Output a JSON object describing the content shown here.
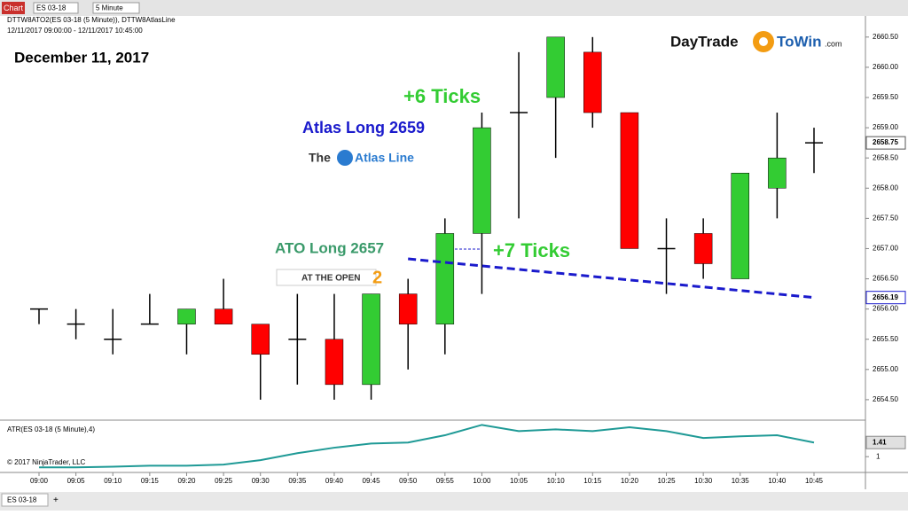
{
  "window": {
    "title": "Chart",
    "instrument": "ES 03-18",
    "interval": "5 Minute",
    "tab": "ES 03-18",
    "add_tab": "+"
  },
  "logo": {
    "part1": "DayTrade",
    "part2": "ToWin",
    "part3": ".com"
  },
  "chart_data": [
    {
      "type": "candlestick",
      "header": "DTTW8ATO2(ES 03-18 (5 Minute)), DTTW8AtlasLine",
      "range": "12/11/2017 09:00:00 - 12/11/2017 10:45:00",
      "title": "December 11, 2017",
      "x": [
        "09:00",
        "09:05",
        "09:10",
        "09:15",
        "09:20",
        "09:25",
        "09:30",
        "09:35",
        "09:40",
        "09:45",
        "09:50",
        "09:55",
        "10:00",
        "10:05",
        "10:10",
        "10:15",
        "10:20",
        "10:25",
        "10:30",
        "10:35",
        "10:40",
        "10:45"
      ],
      "series": [
        {
          "up_color": "#33cc33",
          "down_color": "#ff0000",
          "open": [
            2656.0,
            2655.75,
            2655.5,
            2655.75,
            2655.75,
            2656.0,
            2655.75,
            2655.5,
            2655.5,
            2654.75,
            2656.25,
            2655.75,
            2657.25,
            2659.25,
            2659.5,
            2660.25,
            2659.25,
            2657.0,
            2657.25,
            2656.5,
            2658.0,
            2658.75
          ],
          "high": [
            2656.0,
            2656.0,
            2656.0,
            2656.25,
            2656.0,
            2656.5,
            2655.75,
            2656.25,
            2656.25,
            2656.25,
            2656.5,
            2657.5,
            2659.25,
            2660.25,
            2660.5,
            2660.5,
            2659.25,
            2657.5,
            2657.5,
            2658.25,
            2659.25,
            2659.0
          ],
          "low": [
            2655.75,
            2655.5,
            2655.25,
            2655.75,
            2655.25,
            2655.75,
            2654.5,
            2654.75,
            2654.5,
            2654.5,
            2655.0,
            2655.25,
            2656.25,
            2657.5,
            2658.5,
            2659.0,
            2657.0,
            2656.25,
            2656.5,
            2656.5,
            2657.5,
            2658.25
          ],
          "close": [
            2656.0,
            2655.75,
            2655.5,
            2655.75,
            2656.0,
            2655.75,
            2655.25,
            2655.5,
            2654.75,
            2656.25,
            2655.75,
            2657.25,
            2659.0,
            2659.25,
            2660.5,
            2659.25,
            2657.0,
            2657.0,
            2656.75,
            2658.25,
            2658.5,
            2658.75
          ]
        }
      ],
      "trend_line": {
        "color": "#1a1acc",
        "x": [
          "09:50",
          "10:45"
        ],
        "values": [
          2656.83,
          2656.19
        ]
      },
      "ylim": [
        2654.22,
        2660.82
      ],
      "yticks": [
        {
          "value": 2654.5,
          "label": "2654.50"
        },
        {
          "value": 2655.0,
          "label": "2655.00"
        },
        {
          "value": 2655.5,
          "label": "2655.50"
        },
        {
          "value": 2656.0,
          "label": "2656.00"
        },
        {
          "value": 2656.5,
          "label": "2656.50"
        },
        {
          "value": 2657.0,
          "label": "2657.00"
        },
        {
          "value": 2657.5,
          "label": "2657.50"
        },
        {
          "value": 2658.0,
          "label": "2658.00"
        },
        {
          "value": 2658.5,
          "label": "2658.50"
        },
        {
          "value": 2659.0,
          "label": "2659.00"
        },
        {
          "value": 2659.5,
          "label": "2659.50"
        },
        {
          "value": 2660.0,
          "label": "2660.00"
        },
        {
          "value": 2660.5,
          "label": "2660.50"
        }
      ],
      "annotations": [
        {
          "text": "+6 Ticks",
          "color": "#33cc33"
        },
        {
          "text": "Atlas Long 2659",
          "color": "#1a1acc"
        },
        {
          "text": "ATO Long 2657",
          "color": "#3a9a6a"
        },
        {
          "text": "+7 Ticks",
          "color": "#33cc33"
        }
      ],
      "badges": {
        "atlas_prefix": "The",
        "atlas_name": "Atlas Line",
        "ato": "AT THE OPEN",
        "ato_num": "2"
      }
    },
    {
      "type": "line",
      "title": "ATR(ES 03-18 (5 Minute),4)",
      "copyright": "© 2017 NinjaTrader, LLC",
      "series": [
        {
          "color": "#1f9a96",
          "values": [
            0.69,
            0.69,
            0.71,
            0.74,
            0.74,
            0.77,
            0.9,
            1.1,
            1.26,
            1.38,
            1.41,
            1.62,
            1.92,
            1.74,
            1.79,
            1.74,
            1.85,
            1.74,
            1.54,
            1.59,
            1.62,
            1.41
          ]
        }
      ],
      "ylim": [
        0.62,
        1.98
      ],
      "yticks": [
        1
      ]
    }
  ]
}
